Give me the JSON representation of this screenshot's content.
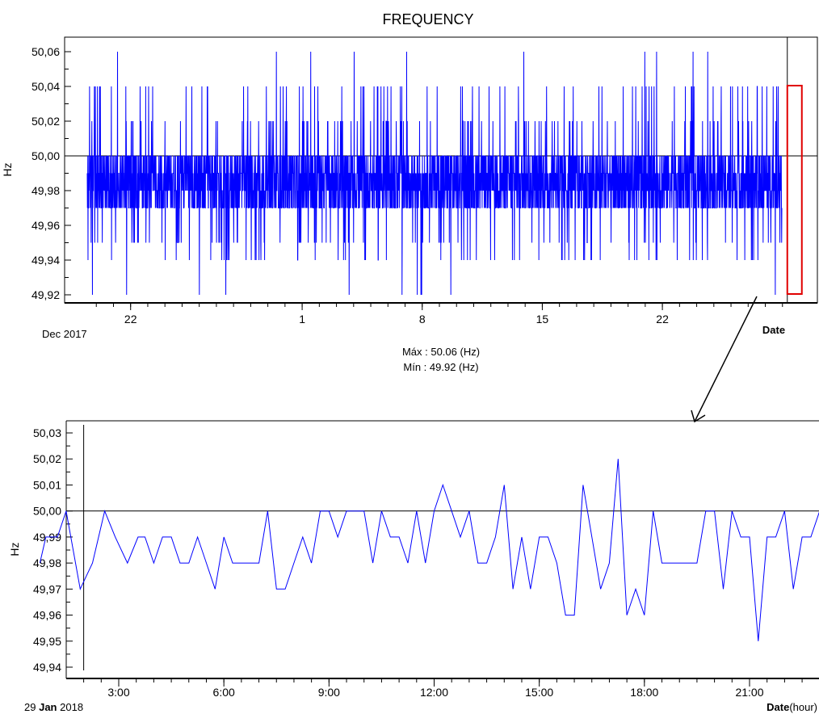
{
  "title": "FREQUENCY",
  "colors": {
    "series": "#0000ff",
    "frame": "#000000",
    "highlight": "#e00000",
    "gap": "#d4b800"
  },
  "stats": {
    "max": "Máx : 50.06 (Hz)",
    "min": "Mín : 49.92 (Hz)"
  },
  "chart_data": [
    {
      "type": "line",
      "name": "top",
      "ylabel": "Hz",
      "xlabel": "Date",
      "period_label": "Dec 2017",
      "ylim": [
        49.91,
        50.07
      ],
      "yticks": [
        "50,06",
        "50,04",
        "50,02",
        "50,00",
        "49,98",
        "49,96",
        "49,94",
        "49,92"
      ],
      "ytick_values": [
        50.06,
        50.04,
        50.02,
        50.0,
        49.98,
        49.96,
        49.94,
        49.92
      ],
      "reference_line": 50.0,
      "x_domain": [
        "2017-12-19",
        "2018-01-30"
      ],
      "xticks": [
        {
          "label": "22",
          "date": "2017-12-22"
        },
        {
          "label": "1",
          "date": "2018-01-01"
        },
        {
          "label": "8",
          "date": "2018-01-08"
        },
        {
          "label": "15",
          "date": "2018-01-15"
        },
        {
          "label": "22",
          "date": "2018-01-22"
        }
      ],
      "data_start": "2017-12-19",
      "data_end": "2018-01-30",
      "samples": 3600,
      "summary": {
        "max": 50.06,
        "min": 49.92,
        "typical_low": 49.97,
        "typical_high": 50.0
      },
      "highlight_range": {
        "from": "2018-01-29",
        "to": "2018-01-30",
        "ymin": 49.92,
        "ymax": 50.04
      }
    },
    {
      "type": "line",
      "name": "bottom",
      "ylabel": "Hz",
      "xlabel": "Date",
      "xlabel_unit": "(hour)",
      "period_label_day": "29",
      "period_label_month": "Jan",
      "period_label_year": "2018",
      "ylim": [
        49.94,
        50.03
      ],
      "yticks": [
        "50,03",
        "50,02",
        "50,01",
        "50,00",
        "49,99",
        "49,98",
        "49,97",
        "49,96",
        "49,95",
        "49,94"
      ],
      "ytick_values": [
        50.03,
        50.02,
        50.01,
        50.0,
        49.99,
        49.98,
        49.97,
        49.96,
        49.95,
        49.94
      ],
      "reference_line": 50.0,
      "xlim": [
        0.75,
        23.6
      ],
      "xticks": [
        {
          "label": "3:00",
          "value": 3
        },
        {
          "label": "6:00",
          "value": 6
        },
        {
          "label": "9:00",
          "value": 9
        },
        {
          "label": "12:00",
          "value": 12
        },
        {
          "label": "15:00",
          "value": 15
        },
        {
          "label": "18:00",
          "value": 18
        },
        {
          "label": "21:00",
          "value": 21
        }
      ],
      "cursor_x": 2.0,
      "x": [
        0.75,
        0.92,
        1.25,
        1.5,
        1.9,
        2.25,
        2.6,
        2.9,
        3.25,
        3.55,
        3.75,
        4.0,
        4.25,
        4.5,
        4.75,
        5.0,
        5.25,
        5.5,
        5.75,
        6.0,
        6.25,
        6.5,
        6.75,
        7.0,
        7.25,
        7.5,
        7.75,
        8.0,
        8.25,
        8.5,
        8.75,
        9.0,
        9.25,
        9.5,
        9.75,
        10.0,
        10.25,
        10.5,
        10.75,
        11.0,
        11.25,
        11.5,
        11.75,
        12.0,
        12.25,
        12.5,
        12.75,
        13.0,
        13.25,
        13.5,
        13.75,
        14.0,
        14.25,
        14.5,
        14.75,
        15.0,
        15.25,
        15.5,
        15.75,
        16.0,
        16.25,
        16.5,
        16.75,
        17.0,
        17.25,
        17.5,
        17.75,
        18.0,
        18.25,
        18.5,
        18.75,
        19.0,
        19.25,
        19.5,
        19.75,
        20.0,
        20.25,
        20.5,
        20.75,
        21.0,
        21.25,
        21.5,
        21.75,
        22.0,
        22.25,
        22.5,
        22.75,
        23.0,
        23.25,
        23.6
      ],
      "values": [
        49.98,
        49.99,
        49.99,
        50.0,
        49.97,
        49.98,
        50.0,
        49.99,
        49.98,
        49.99,
        49.99,
        49.98,
        49.99,
        49.99,
        49.98,
        49.98,
        49.99,
        49.98,
        49.97,
        49.99,
        49.98,
        49.98,
        49.98,
        49.98,
        50.0,
        49.97,
        49.97,
        49.98,
        49.99,
        49.98,
        50.0,
        50.0,
        49.99,
        50.0,
        50.0,
        50.0,
        49.98,
        50.0,
        49.99,
        49.99,
        49.98,
        50.0,
        49.98,
        50.0,
        50.01,
        50.0,
        49.99,
        50.0,
        49.98,
        49.98,
        49.99,
        50.01,
        49.97,
        49.99,
        49.97,
        49.99,
        49.99,
        49.98,
        49.96,
        49.96,
        50.01,
        49.99,
        49.97,
        49.98,
        50.02,
        49.96,
        49.97,
        49.96,
        50.0,
        49.98,
        49.98,
        49.98,
        49.98,
        49.98,
        50.0,
        50.0,
        49.97,
        50.0,
        49.99,
        49.99,
        49.95,
        49.99,
        49.99,
        50.0,
        49.97,
        49.99,
        49.99,
        50.0,
        49.99,
        50.0
      ]
    }
  ]
}
